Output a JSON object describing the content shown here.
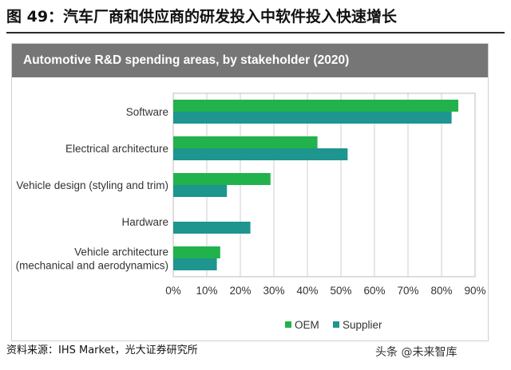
{
  "figure_title": "图 49：汽车厂商和供应商的研发投入中软件投入快速增长",
  "source": "资料来源：IHS Market，光大证券研究所",
  "watermark": "头条 @未来智库",
  "colors": {
    "oem": "#22b24c",
    "supplier": "#1e958f",
    "header_bg": "#767676",
    "grid": "#cfcfcf"
  },
  "chart_data": {
    "type": "bar",
    "orientation": "horizontal",
    "title": "Automotive R&D spending areas, by stakeholder (2020)",
    "categories": [
      [
        "Software"
      ],
      [
        "Electrical architecture"
      ],
      [
        "Vehicle design (styling and trim)"
      ],
      [
        "Hardware"
      ],
      [
        "Vehicle architecture",
        "(mechanical and aerodynamics)"
      ]
    ],
    "series": [
      {
        "name": "OEM",
        "values": [
          85,
          43,
          29,
          0,
          14
        ]
      },
      {
        "name": "Supplier",
        "values": [
          83,
          52,
          16,
          23,
          13
        ]
      }
    ],
    "xlim": [
      0,
      90
    ],
    "xticks": [
      0,
      10,
      20,
      30,
      40,
      50,
      60,
      70,
      80,
      90
    ],
    "xtick_labels": [
      "0%",
      "10%",
      "20%",
      "30%",
      "40%",
      "50%",
      "60%",
      "70%",
      "80%",
      "90%"
    ],
    "legend": [
      "OEM",
      "Supplier"
    ],
    "legend_position": "bottom-right",
    "grid": true
  }
}
